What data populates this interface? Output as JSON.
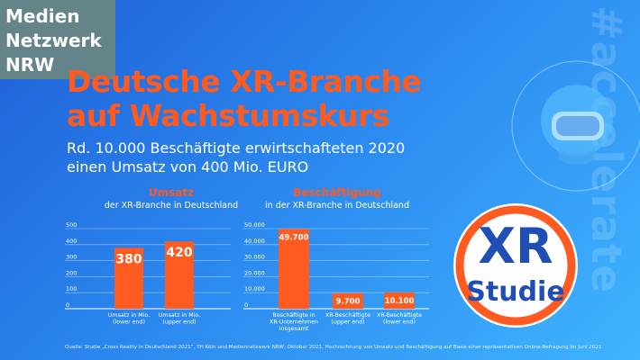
{
  "logo": {
    "line1": "Medien",
    "line2": "Netzwerk",
    "line3": "NRW"
  },
  "title": {
    "line1": "Deutsche XR-Branche",
    "line2": "auf Wachstumskurs"
  },
  "subtitle": {
    "line1": "Rd. 10.000 Beschäftigte erwirtschafteten 2020",
    "line2": "einen Umsatz von 400 Mio. EURO"
  },
  "hashtag": "#accelerate",
  "badge": {
    "top": "XR",
    "bottom": "Studie"
  },
  "icon": "vr-headset-icon",
  "colors": {
    "bar": "#ff5a1f",
    "title": "#ff5a1f",
    "background": "#2a86ee",
    "logo_bg": "#65848a",
    "badge_ring": "#ff5a1f",
    "badge_text": "#1f4fb5"
  },
  "source": "Quelle: Studie „Cross Reality in Deutschland 2021“, TH Köln und Mediennetzwerk NRW, Oktober 2021, Hochrechnung von Umsatz und Beschäftigung auf Basis einer repräsentativen Online-Befragung im Juni 2021",
  "chart_data": [
    {
      "type": "bar",
      "title": "Umsatz",
      "subtitle": "der XR-Branche in Deutschland",
      "categories": [
        "Umsatz in Mio. (lower end)",
        "Umsatz in Mio. (upper end)"
      ],
      "category_lines": [
        [
          "Umsatz in Mio.",
          "(lower end)"
        ],
        [
          "Umsatz in Mio.",
          "(upper end)"
        ]
      ],
      "values": [
        380,
        420
      ],
      "data_labels": [
        "380",
        "420"
      ],
      "yticks": [
        "0",
        "100",
        "200",
        "300",
        "400",
        "500"
      ],
      "ylim": [
        0,
        500
      ],
      "grid": true,
      "legend": "none"
    },
    {
      "type": "bar",
      "title": "Beschäftigung",
      "subtitle": "in der XR-Branche in Deutschland",
      "categories": [
        "Beschäftigte in XR-Unternehmen insgesamt",
        "XR-Beschäftigte (upper end)",
        "XR-Beschäftigte (lower end)"
      ],
      "category_lines": [
        [
          "Beschäftigte in",
          "XR-Unternehmen",
          "insgesamt"
        ],
        [
          "XR-Beschäftigte",
          "(upper end)"
        ],
        [
          "XR-Beschäftigte",
          "(lower end)"
        ]
      ],
      "values": [
        49700,
        9700,
        10100
      ],
      "data_labels": [
        "49.700",
        "9.700",
        "10.100"
      ],
      "yticks": [
        "0",
        "10.000",
        "20.000",
        "30.000",
        "40.000",
        "50.000"
      ],
      "ylim": [
        0,
        50000
      ],
      "grid": true,
      "legend": "none"
    }
  ]
}
